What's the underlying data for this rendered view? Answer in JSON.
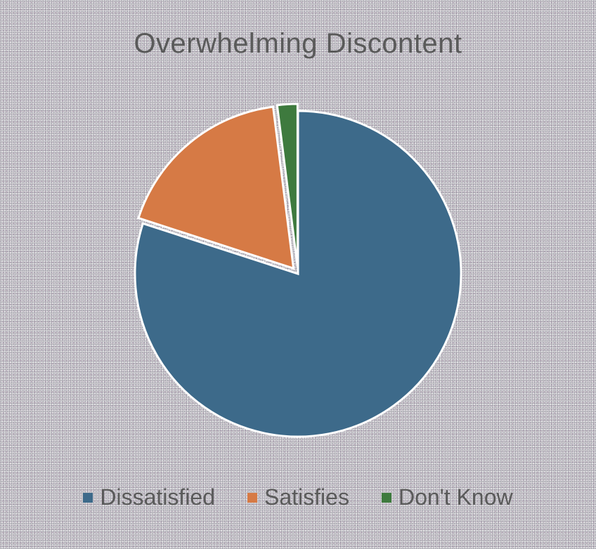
{
  "chart_data": {
    "type": "pie",
    "title": "Overwhelming Discontent",
    "categories": [
      "Dissatisfied",
      "Satisfies",
      "Don't Know"
    ],
    "values": [
      80,
      18,
      2
    ],
    "colors": [
      "#3d6a8a",
      "#d67a45",
      "#3e7a3e"
    ],
    "legend_position": "bottom",
    "exploded_slice": "Dissatisfied"
  }
}
